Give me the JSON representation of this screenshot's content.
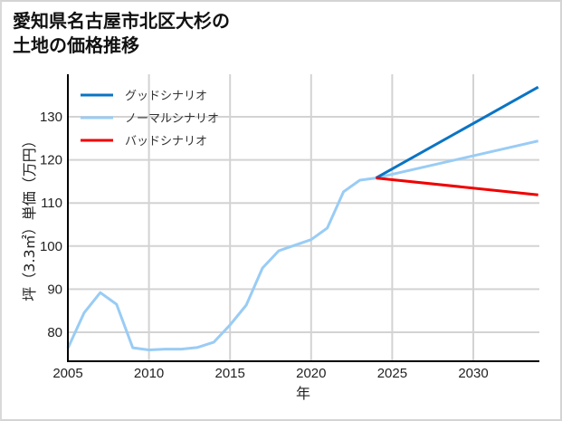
{
  "chart_data": {
    "type": "line",
    "title": "愛知県名古屋市北区大杉の土地の価格推移",
    "title_lines": [
      "愛知県名古屋市北区大杉の",
      "土地の価格推移"
    ],
    "xlabel": "年",
    "ylabel": "坪（3.3㎡）単価（万円）",
    "xlim": [
      2005,
      2034
    ],
    "ylim": [
      73,
      139
    ],
    "xticks": [
      2005,
      2010,
      2015,
      2020,
      2025,
      2030
    ],
    "yticks": [
      80,
      90,
      100,
      110,
      120,
      130
    ],
    "grid": true,
    "legend_position": "upper left",
    "series": [
      {
        "name": "グッドシナリオ",
        "color": "#0a74c4",
        "x": [
          2024,
          2034
        ],
        "y": [
          115.8,
          136.9
        ]
      },
      {
        "name": "ノーマルシナリオ",
        "color": "#99ccf5",
        "x": [
          2005,
          2006,
          2007,
          2008,
          2009,
          2010,
          2011,
          2012,
          2013,
          2014,
          2015,
          2016,
          2017,
          2018,
          2019,
          2020,
          2021,
          2022,
          2023,
          2024,
          2034
        ],
        "y": [
          76.3,
          84.5,
          89.2,
          86.5,
          76.4,
          75.9,
          76.1,
          76.1,
          76.5,
          77.7,
          81.7,
          86.3,
          94.9,
          98.9,
          100.2,
          101.5,
          104.2,
          112.6,
          115.3,
          115.8,
          124.4
        ]
      },
      {
        "name": "バッドシナリオ",
        "color": "#f00000",
        "x": [
          2024,
          2034
        ],
        "y": [
          115.8,
          111.9
        ]
      }
    ]
  }
}
